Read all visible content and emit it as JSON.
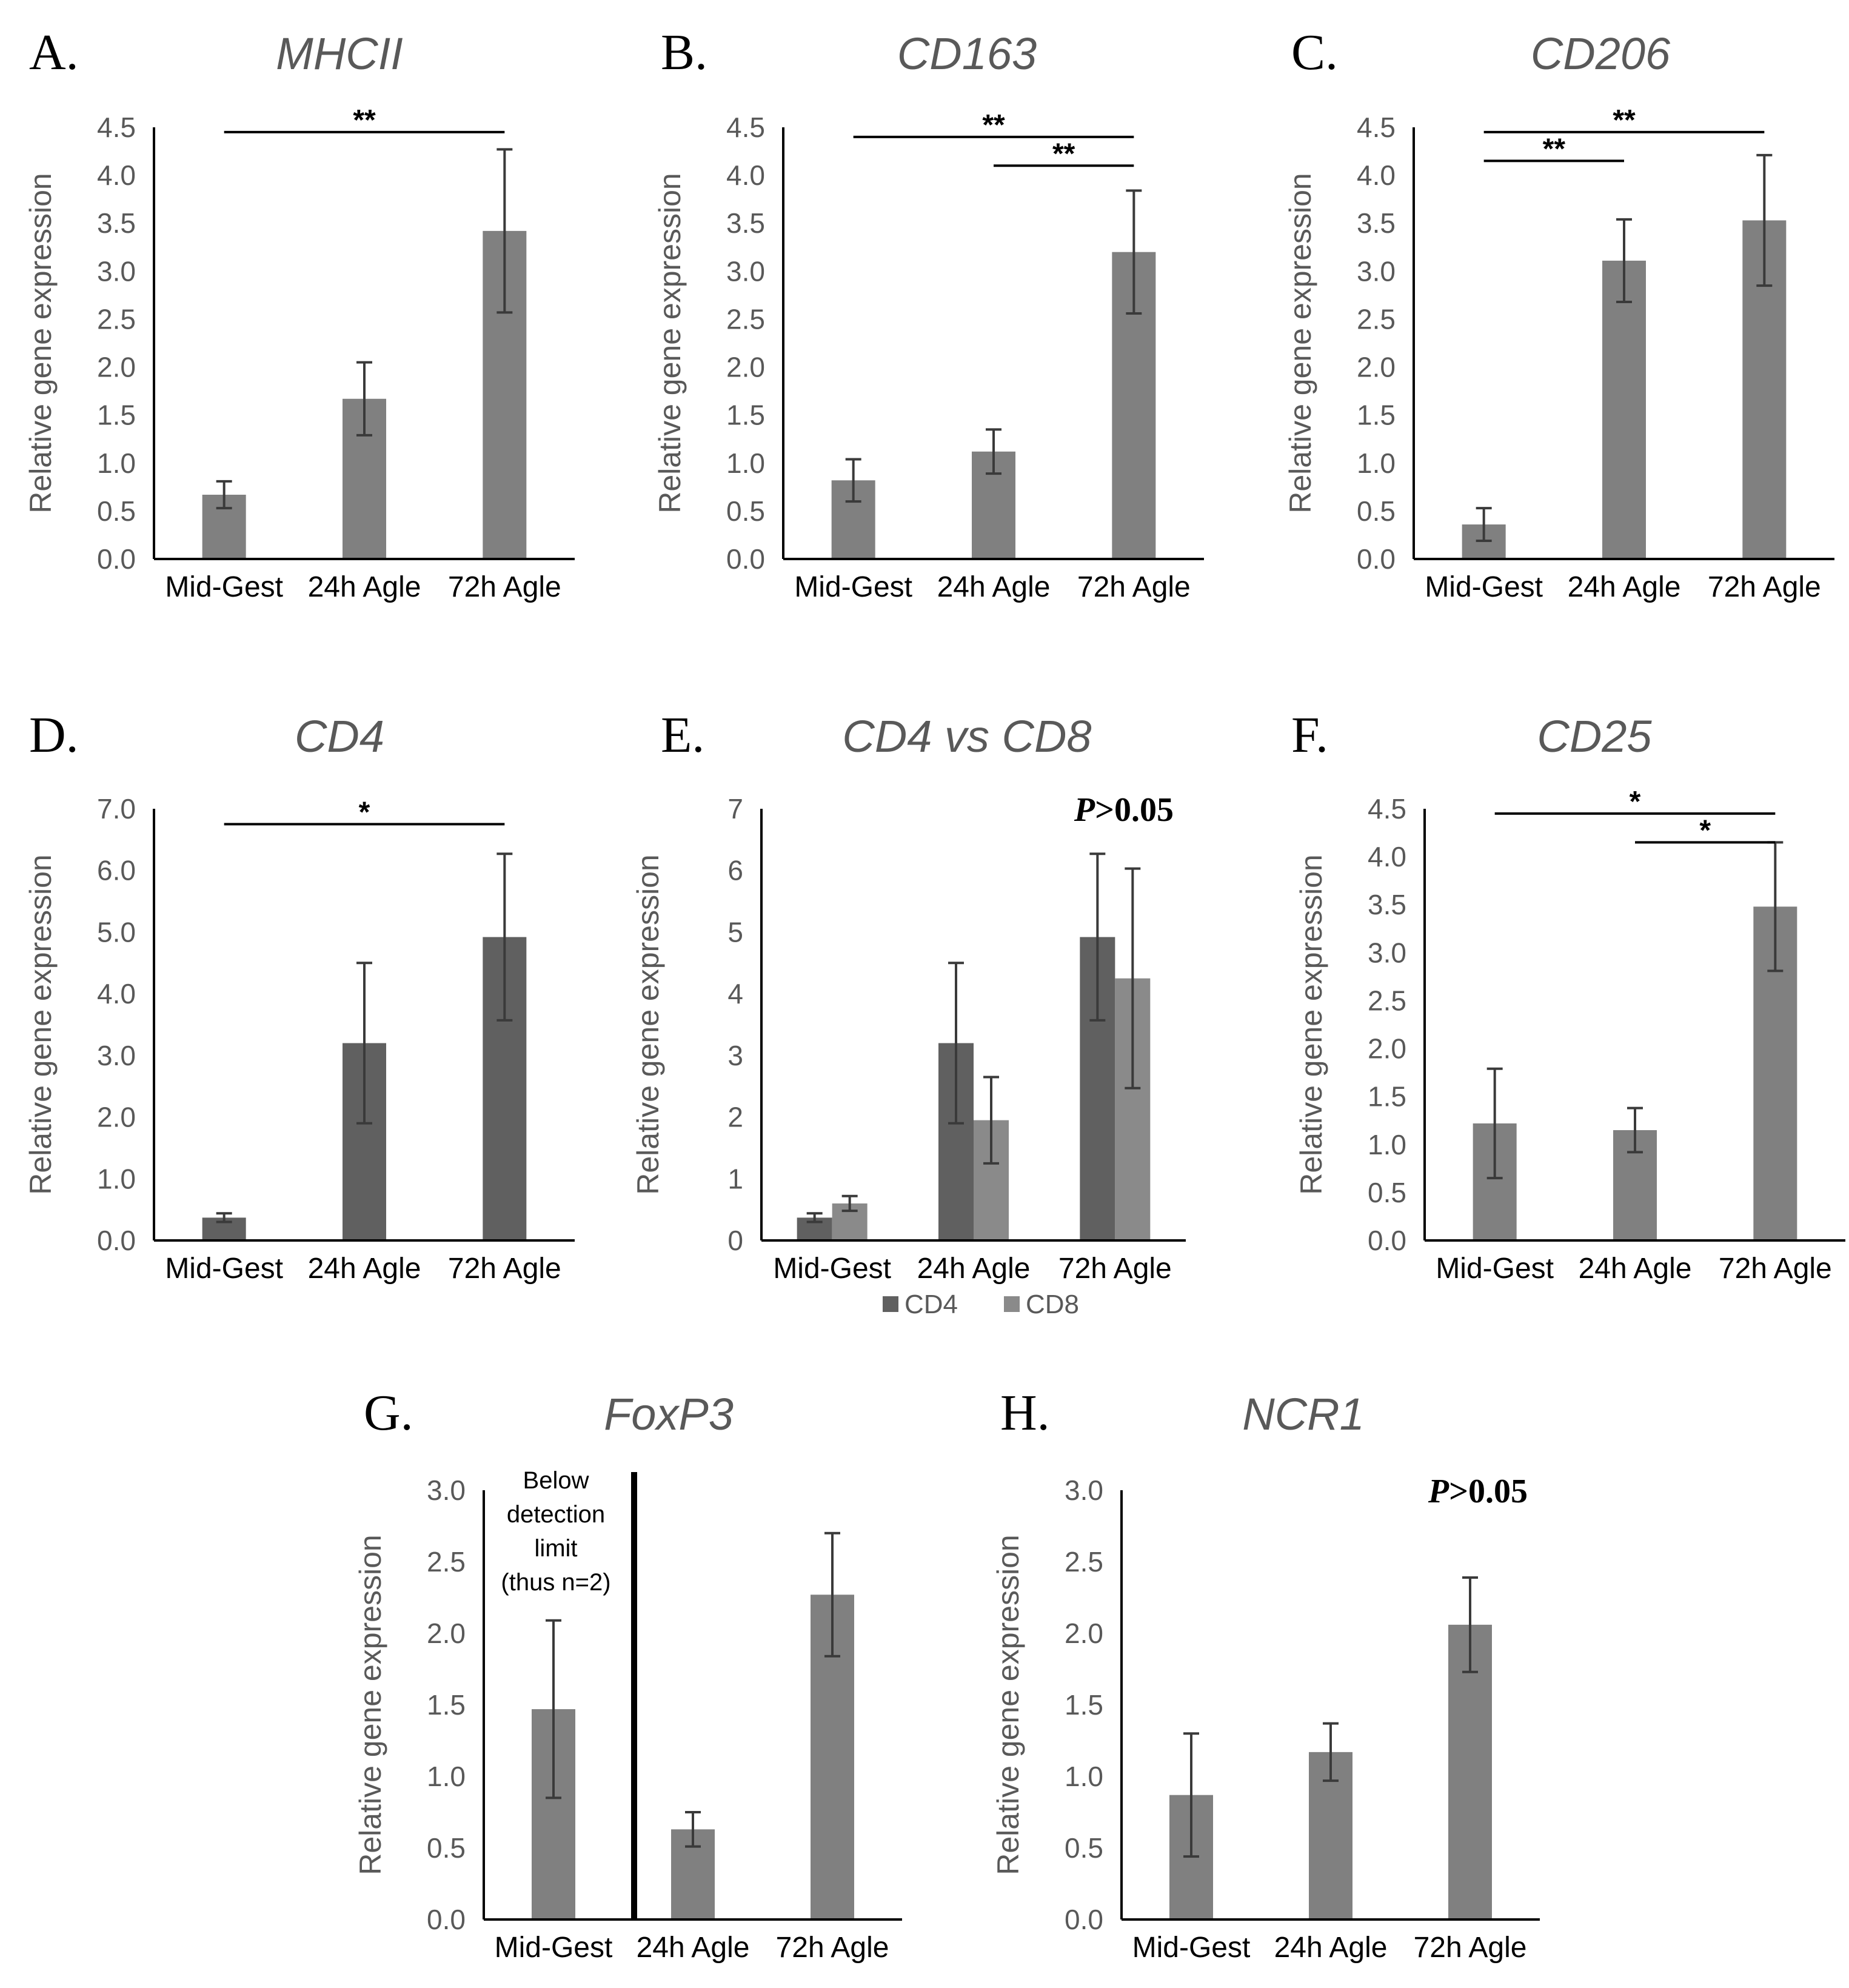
{
  "chart_data": [
    {
      "panel": "A.",
      "title": "MHCII",
      "type": "bar",
      "ylabel": "Relative gene expression",
      "ylim": [
        0,
        4.5
      ],
      "yticks": [
        "0.0",
        "0.5",
        "1.0",
        "1.5",
        "2.0",
        "2.5",
        "3.0",
        "3.5",
        "4.0",
        "4.5"
      ],
      "categories": [
        "Mid-Gest",
        "24h Agle",
        "72h Agle"
      ],
      "series": [
        {
          "name": "MHCII",
          "color": "#808080",
          "values": [
            0.67,
            1.67,
            3.42
          ],
          "errors": [
            0.14,
            0.38,
            0.85
          ]
        }
      ],
      "significance": [
        {
          "from": 0,
          "to": 2,
          "label": "**",
          "y": 4.45
        }
      ]
    },
    {
      "panel": "B.",
      "title": "CD163",
      "type": "bar",
      "ylabel": "Relative gene expression",
      "ylim": [
        0,
        4.5
      ],
      "yticks": [
        "0.0",
        "0.5",
        "1.0",
        "1.5",
        "2.0",
        "2.5",
        "3.0",
        "3.5",
        "4.0",
        "4.5"
      ],
      "categories": [
        "Mid-Gest",
        "24h Agle",
        "72h Agle"
      ],
      "series": [
        {
          "name": "CD163",
          "color": "#808080",
          "values": [
            0.82,
            1.12,
            3.2
          ],
          "errors": [
            0.22,
            0.23,
            0.64
          ]
        }
      ],
      "significance": [
        {
          "from": 0,
          "to": 2,
          "label": "**",
          "y": 4.4
        },
        {
          "from": 1,
          "to": 2,
          "label": "**",
          "y": 4.1
        }
      ]
    },
    {
      "panel": "C.",
      "title": "CD206",
      "type": "bar",
      "ylabel": "Relative gene expression",
      "ylim": [
        0,
        4.5
      ],
      "yticks": [
        "0.0",
        "0.5",
        "1.0",
        "1.5",
        "2.0",
        "2.5",
        "3.0",
        "3.5",
        "4.0",
        "4.5"
      ],
      "categories": [
        "Mid-Gest",
        "24h Agle",
        "72h Agle"
      ],
      "series": [
        {
          "name": "CD206",
          "color": "#808080",
          "values": [
            0.36,
            3.11,
            3.53
          ],
          "errors": [
            0.17,
            0.43,
            0.68
          ]
        }
      ],
      "significance": [
        {
          "from": 0,
          "to": 2,
          "label": "**",
          "y": 4.45
        },
        {
          "from": 0,
          "to": 1,
          "label": "**",
          "y": 4.15
        }
      ]
    },
    {
      "panel": "D.",
      "title": "CD4",
      "type": "bar",
      "ylabel": "Relative gene expression",
      "ylim": [
        0,
        7
      ],
      "yticks": [
        "0.0",
        "1.0",
        "2.0",
        "3.0",
        "4.0",
        "5.0",
        "6.0",
        "7.0"
      ],
      "categories": [
        "Mid-Gest",
        "24h Agle",
        "72h Agle"
      ],
      "series": [
        {
          "name": "CD4",
          "color": "#606060",
          "values": [
            0.37,
            3.2,
            4.92
          ],
          "errors": [
            0.07,
            1.3,
            1.35
          ]
        }
      ],
      "significance": [
        {
          "from": 0,
          "to": 2,
          "label": "*",
          "y": 6.75
        }
      ]
    },
    {
      "panel": "E.",
      "title": "CD4 vs CD8",
      "type": "bar",
      "ylabel": "Relative gene expression",
      "ylim": [
        0,
        7
      ],
      "yticks": [
        "0",
        "1",
        "2",
        "3",
        "4",
        "5",
        "6",
        "7"
      ],
      "categories": [
        "Mid-Gest",
        "24h Agle",
        "72h Agle"
      ],
      "series": [
        {
          "name": "CD4",
          "color": "#606060",
          "values": [
            0.37,
            3.2,
            4.92
          ],
          "errors": [
            0.07,
            1.3,
            1.35
          ]
        },
        {
          "name": "CD8",
          "color": "#8a8a8a",
          "values": [
            0.6,
            1.95,
            4.25
          ],
          "errors": [
            0.12,
            0.7,
            1.78
          ]
        }
      ],
      "pvalue": {
        "p": "P",
        "rest": ">0.05"
      },
      "legend": [
        "CD4",
        "CD8"
      ]
    },
    {
      "panel": "F.",
      "title": "CD25",
      "type": "bar",
      "ylabel": "Relative gene expression",
      "ylim": [
        0,
        4.5
      ],
      "yticks": [
        "0.0",
        "0.5",
        "1.0",
        "1.5",
        "2.0",
        "2.5",
        "3.0",
        "3.5",
        "4.0",
        "4.5"
      ],
      "categories": [
        "Mid-Gest",
        "24h Agle",
        "72h Agle"
      ],
      "series": [
        {
          "name": "CD25",
          "color": "#808080",
          "values": [
            1.22,
            1.15,
            3.48
          ],
          "errors": [
            0.57,
            0.23,
            0.67
          ]
        }
      ],
      "significance": [
        {
          "from": 0,
          "to": 2,
          "label": "*",
          "y": 4.45
        },
        {
          "from": 1,
          "to": 2,
          "label": "*",
          "y": 4.15
        }
      ]
    },
    {
      "panel": "G.",
      "title": "FoxP3",
      "type": "bar",
      "ylabel": "Relative gene expression",
      "ylim": [
        0,
        3
      ],
      "yticks": [
        "0.0",
        "0.5",
        "1.0",
        "1.5",
        "2.0",
        "2.5",
        "3.0"
      ],
      "categories": [
        "Mid-Gest",
        "24h Agle",
        "72h Agle"
      ],
      "series": [
        {
          "name": "FoxP3",
          "color": "#808080",
          "values": [
            1.47,
            0.63,
            2.27
          ],
          "errors": [
            0.62,
            0.12,
            0.43
          ]
        }
      ],
      "note": [
        "Below",
        "detection",
        "limit",
        "(thus n=2)"
      ]
    },
    {
      "panel": "H.",
      "title": "NCR1",
      "type": "bar",
      "ylabel": "Relative gene expression",
      "ylim": [
        0,
        3
      ],
      "yticks": [
        "0.0",
        "0.5",
        "1.0",
        "1.5",
        "2.0",
        "2.5",
        "3.0"
      ],
      "categories": [
        "Mid-Gest",
        "24h Agle",
        "72h Agle"
      ],
      "series": [
        {
          "name": "NCR1",
          "color": "#808080",
          "values": [
            0.87,
            1.17,
            2.06
          ],
          "errors": [
            0.43,
            0.2,
            0.33
          ]
        }
      ],
      "pvalue": {
        "p": "P",
        "rest": ">0.05"
      }
    }
  ]
}
